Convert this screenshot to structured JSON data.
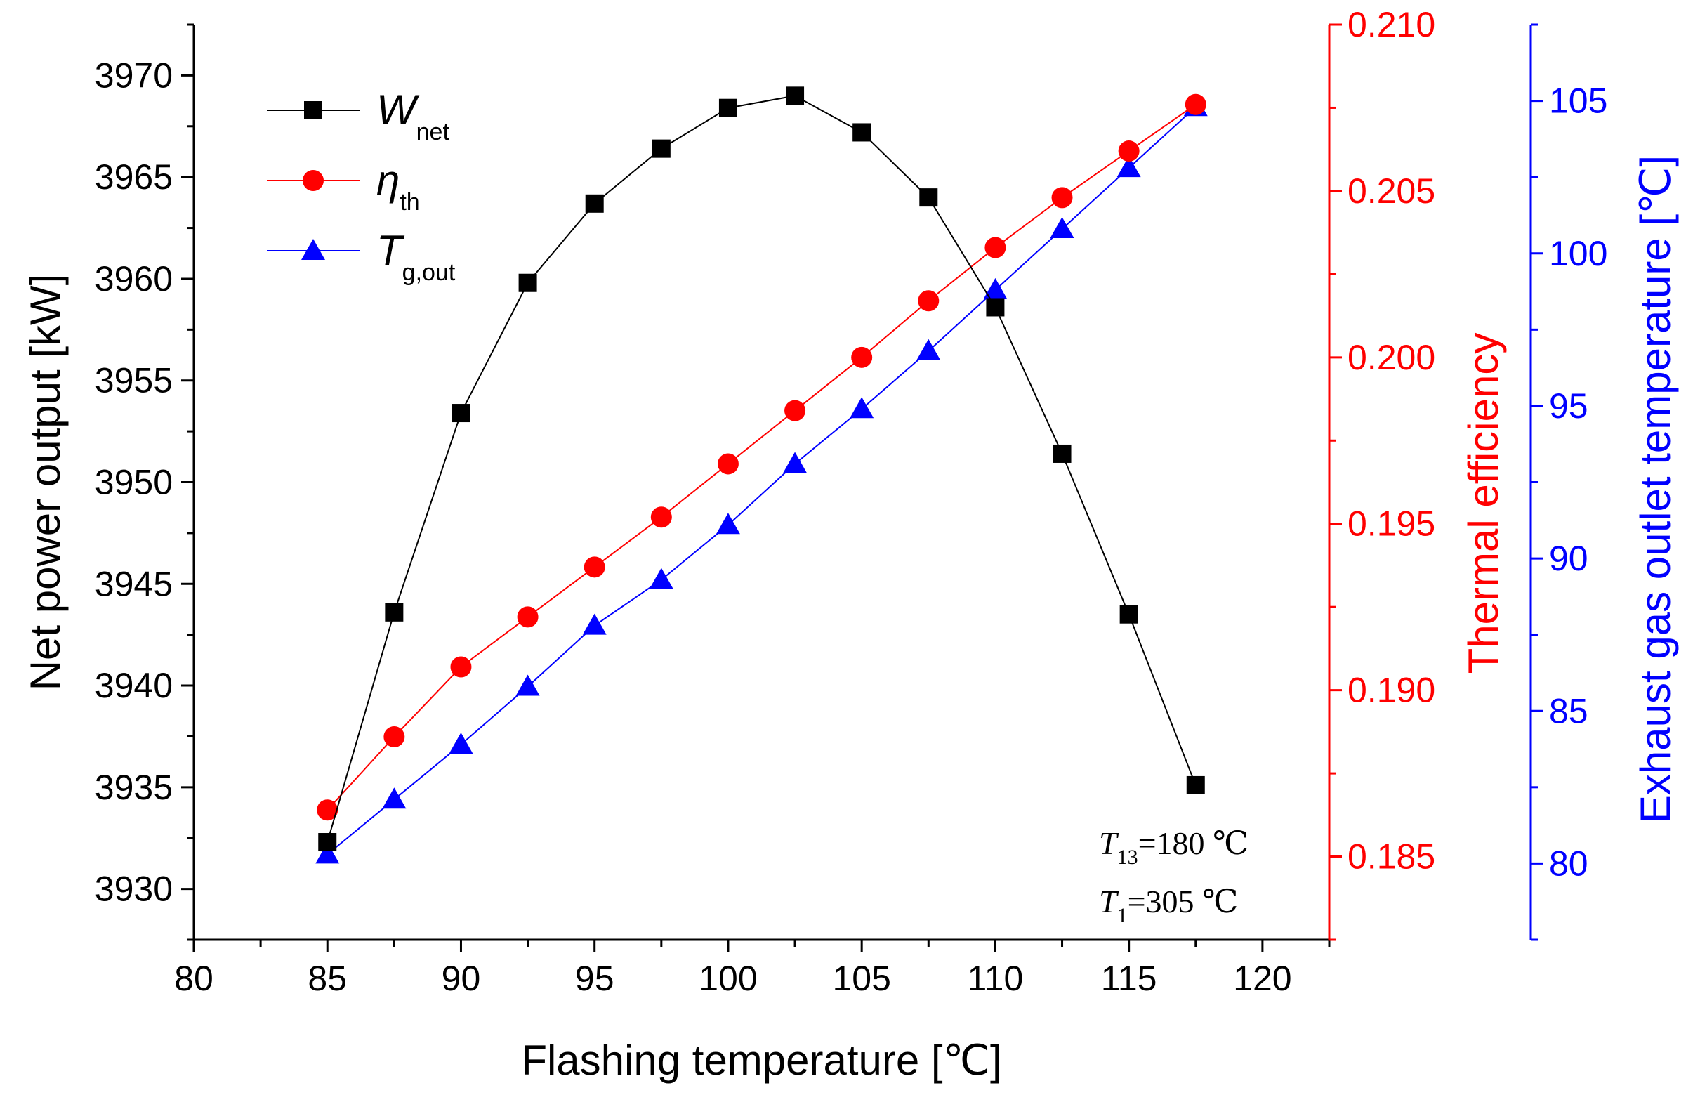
{
  "chart_data": {
    "type": "line",
    "title": "",
    "xlabel": "Flashing temperature [℃]",
    "xlim": [
      80,
      122.5
    ],
    "x_ticks": [
      "80",
      "85",
      "90",
      "95",
      "100",
      "105",
      "110",
      "115",
      "120"
    ],
    "x": [
      85,
      87.5,
      90,
      92.5,
      95,
      97.5,
      100,
      102.5,
      105,
      107.5,
      110,
      112.5,
      115,
      117.5
    ],
    "axes": {
      "left": {
        "label": "Net power output [kW]",
        "ylim": [
          3927.5,
          3972.5
        ],
        "ticks": [
          "3930",
          "3935",
          "3940",
          "3945",
          "3950",
          "3955",
          "3960",
          "3965",
          "3970"
        ],
        "color": "#000000"
      },
      "right1": {
        "label": "Thermal efficiency",
        "ylim": [
          0.1825,
          0.21
        ],
        "ticks": [
          "0.185",
          "0.190",
          "0.195",
          "0.200",
          "0.205",
          "0.210"
        ],
        "color": "#ff0000"
      },
      "right2": {
        "label": "Exhaust gas outlet temperature [℃]",
        "ylim": [
          77.5,
          107.5
        ],
        "ticks": [
          "80",
          "85",
          "90",
          "95",
          "100",
          "105"
        ],
        "color": "#0000ff"
      }
    },
    "series": [
      {
        "name": "W",
        "sub": "net",
        "axis": "left",
        "marker": "square",
        "color": "#000000",
        "values": [
          3932.3,
          3943.6,
          3953.4,
          3959.8,
          3963.7,
          3966.4,
          3968.4,
          3969.0,
          3967.2,
          3964.0,
          3958.6,
          3951.4,
          3943.5,
          3935.1
        ]
      },
      {
        "name": "η",
        "sub": "th",
        "axis": "right1",
        "marker": "circle",
        "color": "#ff0000",
        "values": [
          0.1864,
          0.1886,
          0.1907,
          0.1922,
          0.1937,
          0.1952,
          0.1968,
          0.1984,
          0.2,
          0.2017,
          0.2033,
          0.2048,
          0.2062,
          0.2076
        ]
      },
      {
        "name": "T",
        "sub": "g,out",
        "axis": "right2",
        "marker": "triangle",
        "color": "#0000ff",
        "values": [
          80.3,
          82.1,
          83.9,
          85.8,
          87.8,
          89.3,
          91.1,
          93.1,
          94.9,
          96.8,
          98.8,
          100.8,
          102.8,
          104.8
        ]
      }
    ],
    "annotations": [
      {
        "var": "T",
        "sub": "13",
        "text": "=180 ℃"
      },
      {
        "var": "T",
        "sub": "1",
        "text": "=305 ℃"
      }
    ],
    "legend_position": "top-left"
  }
}
